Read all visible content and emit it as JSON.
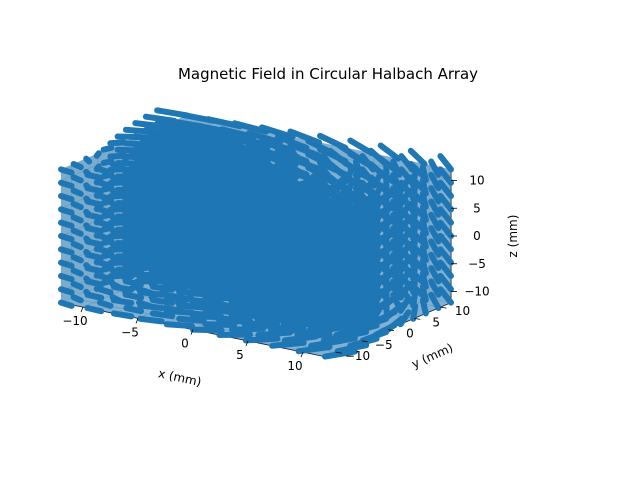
{
  "chart_data": {
    "type": "quiver3d",
    "title": "Magnetic Field in Circular Halbach Array",
    "xlabel": "x (mm)",
    "ylabel": "y (mm)",
    "zlabel": "z (mm)",
    "xlim": [
      -12,
      12
    ],
    "ylim": [
      -12,
      12
    ],
    "zlim": [
      -12,
      12
    ],
    "xticks": [
      -10,
      -5,
      0,
      5,
      10
    ],
    "yticks": [
      -10,
      -5,
      0,
      5,
      10
    ],
    "zticks": [
      -10,
      -5,
      0,
      5,
      10
    ],
    "grid": true,
    "legend": "none",
    "series": [
      {
        "marker": "arrow",
        "color": "#1f77b4",
        "grid_points_per_axis": 11,
        "domain": [
          -12,
          12
        ]
      }
    ]
  }
}
